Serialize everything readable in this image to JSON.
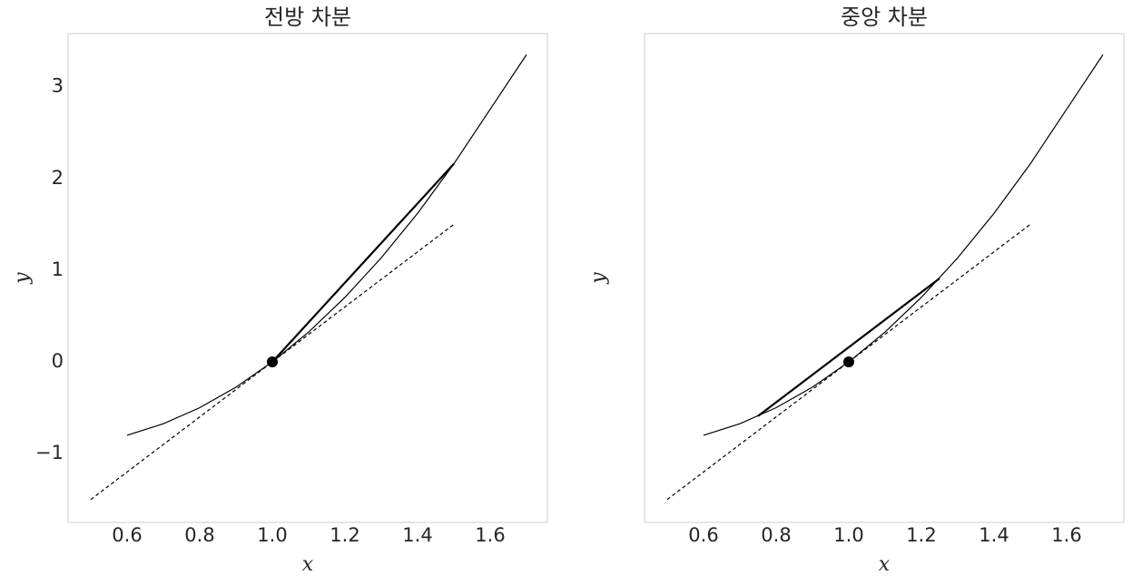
{
  "chart_data": [
    {
      "type": "line",
      "title": "전방 차분",
      "xlabel": "x",
      "ylabel": "y",
      "xlim": [
        0.4375,
        1.7575
      ],
      "ylim": [
        -1.75,
        3.58
      ],
      "xticks": [
        0.6,
        0.8,
        {
          "value": 1,
          "label": "1.0"
        },
        1.2,
        1.4,
        1.6
      ],
      "yticks": [
        {
          "value": -1,
          "label": "−1"
        },
        0,
        1,
        2,
        3
      ],
      "series": [
        {
          "color": "#000000",
          "width": 1.2,
          "x": [
            0.6,
            0.7,
            0.8,
            0.9,
            1.0,
            1.1,
            1.2,
            1.3,
            1.4,
            1.5,
            1.6,
            1.7
          ],
          "values": [
            -0.8,
            -0.674,
            -0.499,
            -0.275,
            0,
            0.326,
            0.704,
            1.135,
            1.62,
            2.16,
            2.755,
            3.35
          ]
        },
        {
          "color": "#000000",
          "width": 1.2,
          "dash": true,
          "x": [
            0.5,
            1.5
          ],
          "values": [
            -1.5,
            1.5
          ]
        },
        {
          "color": "#000000",
          "width": 2.2,
          "x": [
            1.0,
            1.5
          ],
          "values": [
            0,
            2.16
          ]
        },
        {
          "color": "#000000",
          "marker": true,
          "x": [
            1.0
          ],
          "values": [
            0
          ]
        }
      ]
    },
    {
      "type": "line",
      "title": "중앙 차분",
      "xlabel": "x",
      "ylabel": "y",
      "xlim": [
        0.4375,
        1.7575
      ],
      "ylim": [
        -1.75,
        3.58
      ],
      "xticks": [
        0.6,
        0.8,
        {
          "value": 1,
          "label": "1.0"
        },
        1.2,
        1.4,
        1.6
      ],
      "series": [
        {
          "color": "#000000",
          "width": 1.2,
          "x": [
            0.6,
            0.7,
            0.8,
            0.9,
            1.0,
            1.1,
            1.2,
            1.3,
            1.4,
            1.5,
            1.6,
            1.7
          ],
          "values": [
            -0.8,
            -0.674,
            -0.499,
            -0.275,
            0,
            0.326,
            0.704,
            1.135,
            1.62,
            2.16,
            2.755,
            3.35
          ]
        },
        {
          "color": "#000000",
          "width": 1.2,
          "dash": true,
          "x": [
            0.5,
            1.5
          ],
          "values": [
            -1.5,
            1.5
          ]
        },
        {
          "color": "#000000",
          "width": 2.2,
          "x": [
            0.75,
            1.25
          ],
          "values": [
            -0.59,
            0.91
          ]
        },
        {
          "color": "#000000",
          "marker": true,
          "x": [
            1.0
          ],
          "values": [
            0
          ]
        }
      ]
    }
  ]
}
